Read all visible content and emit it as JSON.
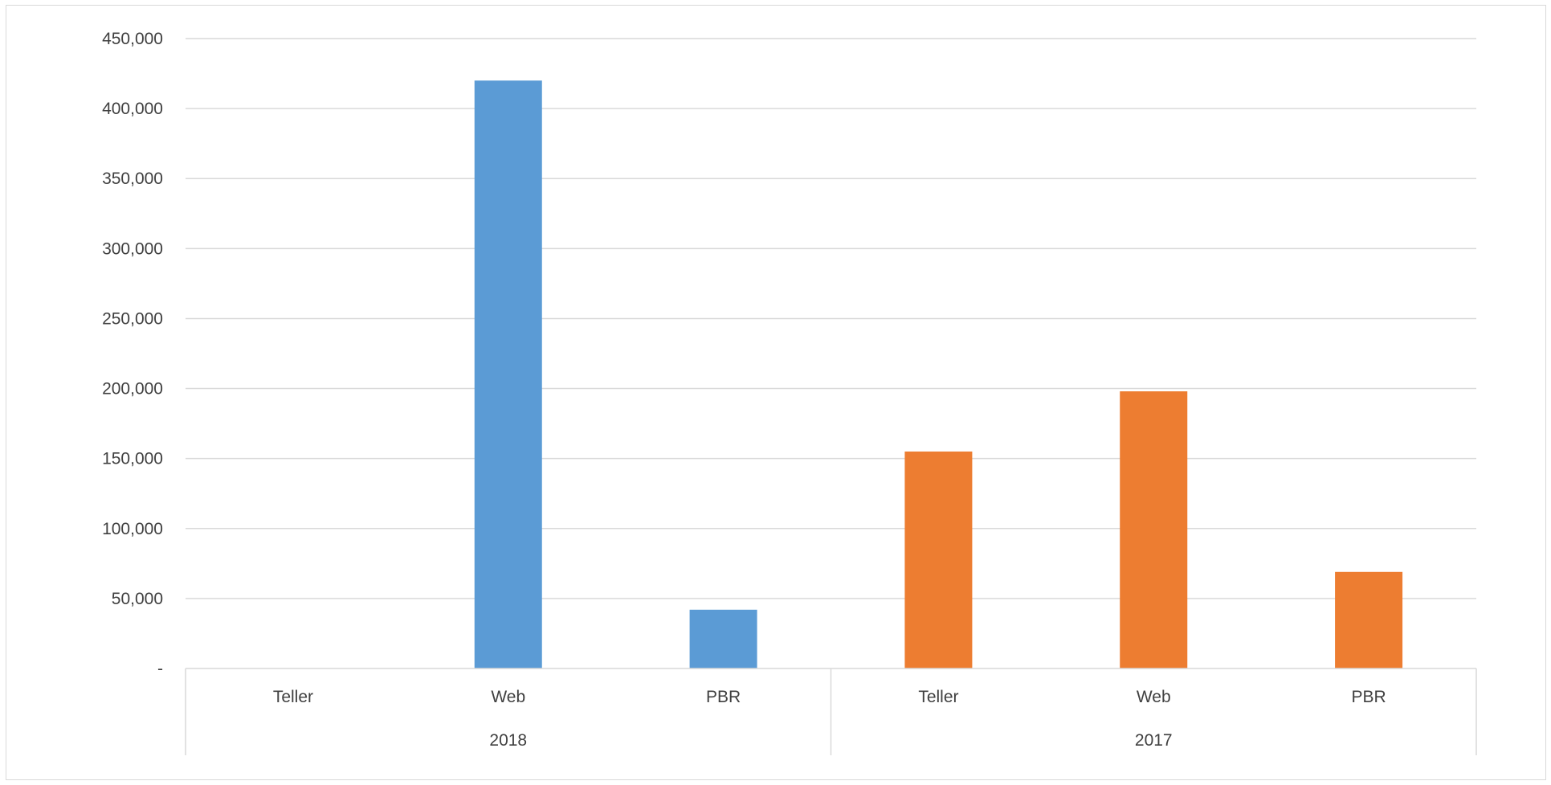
{
  "chart_data": {
    "type": "bar",
    "title": "",
    "xlabel": "",
    "ylabel": "",
    "ylim": [
      0,
      450000
    ],
    "yticks": [
      0,
      50000,
      100000,
      150000,
      200000,
      250000,
      300000,
      350000,
      400000,
      450000
    ],
    "ytick_labels": [
      "-",
      "50,000",
      "100,000",
      "150,000",
      "200,000",
      "250,000",
      "300,000",
      "350,000",
      "400,000",
      "450,000"
    ],
    "grid": true,
    "legend": "none",
    "groups": [
      {
        "label": "2018",
        "color": "#5b9bd5",
        "categories": [
          "Teller",
          "Web",
          "PBR"
        ],
        "values": [
          0,
          420000,
          42000
        ]
      },
      {
        "label": "2017",
        "color": "#ed7d31",
        "categories": [
          "Teller",
          "Web",
          "PBR"
        ],
        "values": [
          155000,
          198000,
          69000
        ]
      }
    ]
  }
}
